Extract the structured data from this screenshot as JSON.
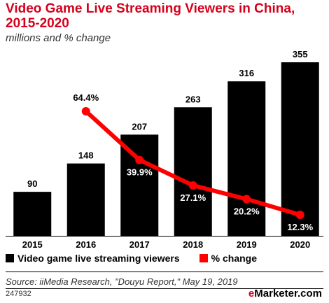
{
  "title": "Video Game Live Streaming Viewers in China, 2015-2020",
  "subtitle": "millions and % change",
  "source": "Source: iiMedia Research, \"Douyu Report,\" May 19, 2019",
  "chart_code": "247932",
  "brand": {
    "prefix": "e",
    "name": "Marketer",
    "suffix": ".com"
  },
  "colors": {
    "bar": "#000000",
    "line": "#ff0000",
    "title": "#d5001c"
  },
  "chart_data": {
    "type": "bar",
    "categories": [
      "2015",
      "2016",
      "2017",
      "2018",
      "2019",
      "2020"
    ],
    "series": [
      {
        "name": "Video game live streaming viewers",
        "type": "bar",
        "values": [
          90,
          148,
          207,
          263,
          316,
          355
        ],
        "labels": [
          "90",
          "148",
          "207",
          "263",
          "316",
          "355"
        ]
      },
      {
        "name": "% change",
        "type": "line",
        "values": [
          null,
          64.4,
          39.9,
          27.1,
          20.2,
          12.3
        ],
        "labels": [
          "",
          "64.4%",
          "39.9%",
          "27.1%",
          "20.2%",
          "12.3%"
        ]
      }
    ],
    "ylim": [
      0,
      355
    ],
    "line_ylim": [
      0,
      64.4
    ],
    "grid": false,
    "legend": "bottom-left"
  }
}
